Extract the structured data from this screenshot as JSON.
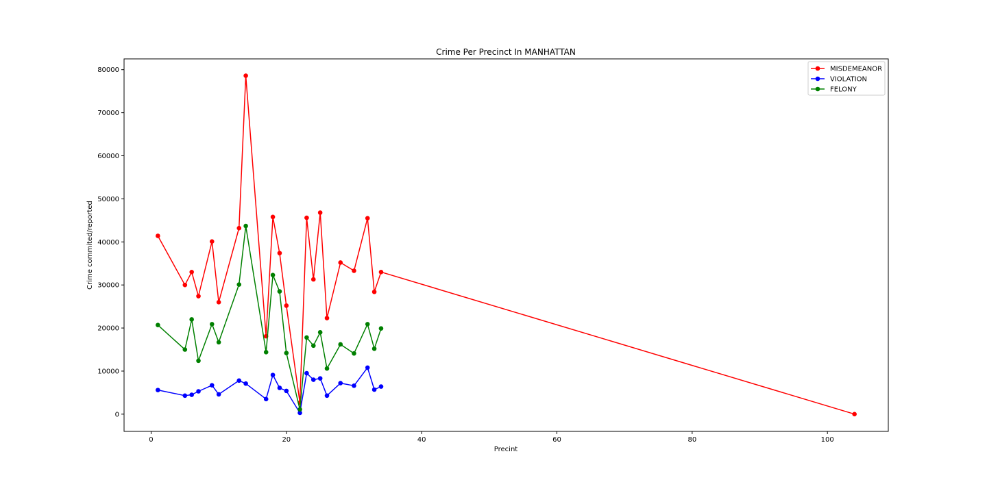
{
  "chart_data": {
    "type": "line",
    "title": "Crime Per Precinct In MANHATTAN",
    "xlabel": "Precint",
    "ylabel": "Crime commited/reported",
    "xlim": [
      -4,
      109
    ],
    "ylim": [
      -4000,
      82500
    ],
    "xticks": [
      0,
      20,
      40,
      60,
      80,
      100
    ],
    "yticks": [
      0,
      10000,
      20000,
      30000,
      40000,
      50000,
      60000,
      70000,
      80000
    ],
    "grid": false,
    "legend_position": "top-right",
    "series": [
      {
        "name": "MISDEMEANOR",
        "color": "#ff0000",
        "x": [
          1,
          5,
          6,
          7,
          9,
          10,
          13,
          14,
          17,
          18,
          19,
          20,
          22,
          23,
          24,
          25,
          26,
          28,
          30,
          32,
          33,
          34,
          104
        ],
        "y": [
          41400,
          30000,
          33000,
          27400,
          40100,
          26000,
          43200,
          78600,
          18100,
          45800,
          37400,
          25200,
          2700,
          45600,
          31300,
          46800,
          22300,
          35200,
          33300,
          45500,
          28400,
          33000,
          0
        ]
      },
      {
        "name": "VIOLATION",
        "color": "#0000ff",
        "x": [
          1,
          5,
          6,
          7,
          9,
          10,
          13,
          14,
          17,
          18,
          19,
          20,
          22,
          23,
          24,
          25,
          26,
          28,
          30,
          32,
          33,
          34
        ],
        "y": [
          5600,
          4300,
          4500,
          5300,
          6700,
          4600,
          7800,
          7100,
          3500,
          9100,
          6100,
          5400,
          300,
          9500,
          8000,
          8300,
          4300,
          7200,
          6600,
          10800,
          5700,
          6400
        ]
      },
      {
        "name": "FELONY",
        "color": "#008000",
        "x": [
          1,
          5,
          6,
          7,
          9,
          10,
          13,
          14,
          17,
          18,
          19,
          20,
          22,
          23,
          24,
          25,
          26,
          28,
          30,
          32,
          33,
          34
        ],
        "y": [
          20700,
          15000,
          22000,
          12400,
          20900,
          16700,
          30100,
          43700,
          14400,
          32300,
          28500,
          14200,
          1100,
          17800,
          15900,
          19000,
          10600,
          16200,
          14100,
          20900,
          15200,
          19900
        ]
      }
    ]
  }
}
